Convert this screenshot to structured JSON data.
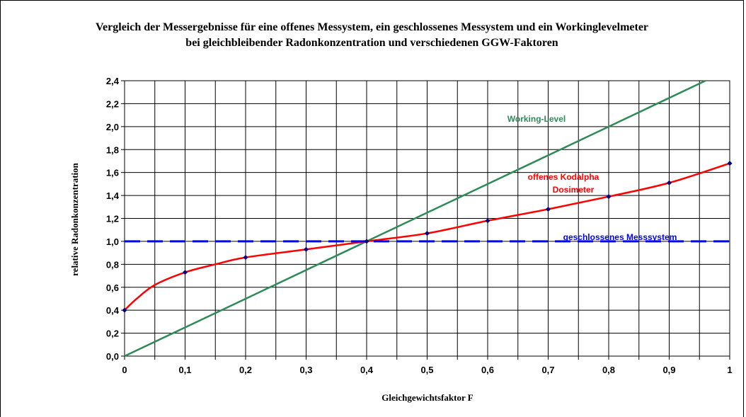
{
  "chart_data": {
    "type": "line",
    "title_line1": "Vergleich der Messergebnisse für eine offenes Messystem, ein geschlossenes Messystem und ein Workinglevelmeter",
    "title_line2": "bei gleichbleibender Radonkonzentration und verschiedenen GGW-Faktoren",
    "xlabel": "Gleichgewichtsfaktor F",
    "ylabel": "relative Radonkonzentration",
    "xlim": [
      0,
      1
    ],
    "ylim": [
      0,
      2.4
    ],
    "x_ticks": [
      "0",
      "0,1",
      "0,2",
      "0,3",
      "0,4",
      "0,5",
      "0,6",
      "0,7",
      "0,8",
      "0,9",
      "1"
    ],
    "y_ticks": [
      "0,0",
      "0,2",
      "0,4",
      "0,6",
      "0,8",
      "1,0",
      "1,2",
      "1,4",
      "1,6",
      "1,8",
      "2,0",
      "2,2",
      "2,4"
    ],
    "grid": true,
    "series": [
      {
        "name": "Working-Level",
        "color": "#2e8b57",
        "style": "solid",
        "x": [
          0,
          0.1,
          0.2,
          0.3,
          0.4,
          0.5,
          0.6,
          0.7,
          0.8,
          0.9,
          0.96
        ],
        "y": [
          0,
          0.25,
          0.5,
          0.75,
          1.0,
          1.25,
          1.5,
          1.75,
          2.0,
          2.25,
          2.4
        ]
      },
      {
        "name": "offenes Kodalpha Dosimeter",
        "name_line1": "offenes Kodalpha",
        "name_line2": "Dosimeter",
        "color": "#ff0000",
        "style": "solid",
        "x": [
          0,
          0.02,
          0.05,
          0.1,
          0.15,
          0.2,
          0.3,
          0.4,
          0.5,
          0.6,
          0.7,
          0.8,
          0.9,
          1.0
        ],
        "y": [
          0.4,
          0.5,
          0.62,
          0.73,
          0.8,
          0.86,
          0.93,
          1.0,
          1.07,
          1.18,
          1.28,
          1.39,
          1.51,
          1.68
        ]
      },
      {
        "name": "geschlossenes Messsystem",
        "color": "#0000ff",
        "style": "dashed",
        "x": [
          0,
          1
        ],
        "y": [
          1.0,
          1.0
        ]
      }
    ],
    "markers_x": [
      0,
      0.1,
      0.2,
      0.3,
      0.4,
      0.5,
      0.6,
      0.7,
      0.8,
      0.9,
      1.0
    ],
    "markers_y": [
      0.4,
      0.73,
      0.86,
      0.93,
      1.0,
      1.07,
      1.18,
      1.28,
      1.39,
      1.51,
      1.68
    ],
    "marker_color": "#000080"
  }
}
